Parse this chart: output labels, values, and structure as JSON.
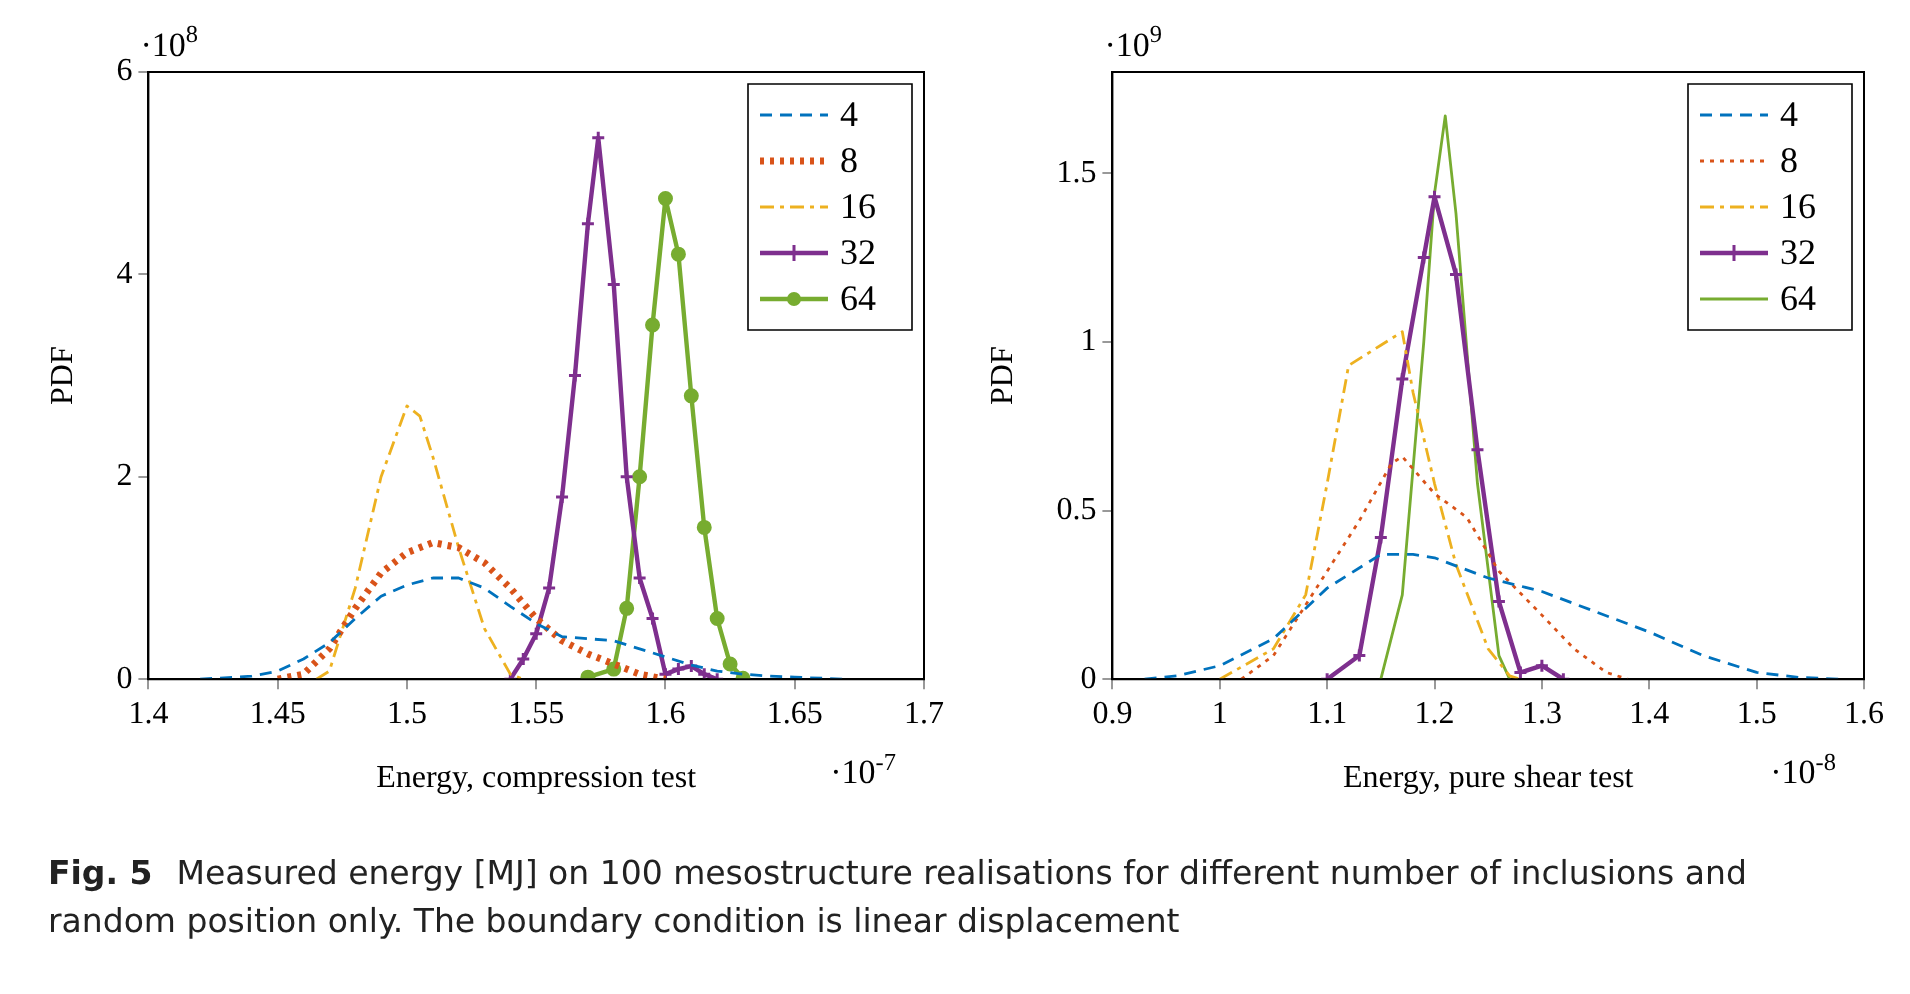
{
  "chart_data": [
    {
      "type": "line",
      "xlabel": "Energy, compression test",
      "ylabel": "PDF",
      "xlim": [
        1.4,
        1.7
      ],
      "xticks": [
        1.4,
        1.45,
        1.5,
        1.55,
        1.6,
        1.65,
        1.7
      ],
      "ylim": [
        0,
        6
      ],
      "yticks": [
        0,
        2,
        4,
        6
      ],
      "legend": "top right",
      "grid": false,
      "annotations": [
        "·10$^{8}$",
        "·10$^{-7}$",
        "Fig. 5",
        "Measured energy [MJ] on 100 mesostructure realisations for different number of inclusions and random position only. The boundary condition is linear displacement"
      ],
      "series": [
        {
          "name": "4",
          "color": "#0072bd",
          "line_style": "dashed",
          "marker": "none",
          "x": [
            1.42,
            1.44,
            1.45,
            1.46,
            1.47,
            1.48,
            1.49,
            1.5,
            1.51,
            1.52,
            1.53,
            1.54,
            1.55,
            1.56,
            1.57,
            1.58,
            1.59,
            1.6,
            1.61,
            1.62,
            1.63,
            1.64,
            1.65,
            1.67
          ],
          "values": [
            0,
            0.03,
            0.08,
            0.2,
            0.36,
            0.6,
            0.82,
            0.93,
            1.0,
            1.0,
            0.9,
            0.72,
            0.55,
            0.42,
            0.4,
            0.38,
            0.3,
            0.22,
            0.14,
            0.08,
            0.05,
            0.03,
            0.02,
            0
          ]
        },
        {
          "name": "8",
          "color": "#d95319",
          "line_style": "dotted",
          "marker": "none",
          "x": [
            1.45,
            1.46,
            1.47,
            1.48,
            1.49,
            1.5,
            1.51,
            1.52,
            1.53,
            1.54,
            1.55,
            1.56,
            1.57,
            1.58,
            1.59,
            1.6
          ],
          "values": [
            0,
            0.05,
            0.3,
            0.7,
            1.05,
            1.25,
            1.35,
            1.3,
            1.15,
            0.9,
            0.6,
            0.38,
            0.25,
            0.15,
            0.05,
            0
          ]
        },
        {
          "name": "16",
          "color": "#edb120",
          "line_style": "dashdot",
          "marker": "none",
          "x": [
            1.465,
            1.47,
            1.48,
            1.49,
            1.5,
            1.505,
            1.51,
            1.52,
            1.53,
            1.54,
            1.545
          ],
          "values": [
            0,
            0.08,
            0.9,
            2.0,
            2.7,
            2.6,
            2.2,
            1.3,
            0.5,
            0.05,
            0
          ]
        },
        {
          "name": "32",
          "color": "#7e2f8e",
          "line_style": "solid",
          "marker": "cross",
          "x": [
            1.54,
            1.545,
            1.55,
            1.555,
            1.56,
            1.565,
            1.57,
            1.574,
            1.58,
            1.585,
            1.59,
            1.595,
            1.6,
            1.605,
            1.61,
            1.615,
            1.62
          ],
          "values": [
            0,
            0.2,
            0.45,
            0.9,
            1.8,
            3.0,
            4.5,
            5.35,
            3.9,
            2.0,
            1.0,
            0.6,
            0.05,
            0.1,
            0.13,
            0.05,
            0
          ]
        },
        {
          "name": "64",
          "color": "#77ac30",
          "line_style": "solid",
          "marker": "circle",
          "x": [
            1.57,
            1.58,
            1.585,
            1.59,
            1.595,
            1.6,
            1.605,
            1.61,
            1.615,
            1.62,
            1.625,
            1.63
          ],
          "values": [
            0.02,
            0.1,
            0.7,
            2.0,
            3.5,
            4.75,
            4.2,
            2.8,
            1.5,
            0.6,
            0.15,
            0.01
          ]
        }
      ]
    },
    {
      "type": "line",
      "xlabel": "Energy, pure shear test",
      "ylabel": "PDF",
      "xlim": [
        0.9,
        1.6
      ],
      "xticks": [
        0.9,
        1,
        1.1,
        1.2,
        1.3,
        1.4,
        1.5,
        1.6
      ],
      "ylim": [
        0,
        1.8
      ],
      "yticks": [
        0,
        0.5,
        1,
        1.5
      ],
      "legend": "top right",
      "grid": false,
      "annotations": [
        "·10$^{9}$",
        "·10$^{-8}$"
      ],
      "series": [
        {
          "name": "4",
          "color": "#0072bd",
          "line_style": "dashed",
          "marker": "none",
          "x": [
            0.93,
            0.96,
            1.0,
            1.05,
            1.1,
            1.15,
            1.18,
            1.2,
            1.25,
            1.3,
            1.35,
            1.4,
            1.45,
            1.5,
            1.54,
            1.58
          ],
          "values": [
            0,
            0.01,
            0.04,
            0.12,
            0.27,
            0.37,
            0.37,
            0.36,
            0.3,
            0.26,
            0.2,
            0.14,
            0.07,
            0.02,
            0.005,
            0
          ]
        },
        {
          "name": "8",
          "color": "#d95319",
          "line_style": "dotted",
          "marker": "none",
          "x": [
            1.02,
            1.05,
            1.1,
            1.13,
            1.16,
            1.17,
            1.2,
            1.23,
            1.26,
            1.3,
            1.33,
            1.36,
            1.38
          ],
          "values": [
            0,
            0.07,
            0.32,
            0.47,
            0.64,
            0.66,
            0.55,
            0.48,
            0.32,
            0.19,
            0.09,
            0.02,
            0
          ]
        },
        {
          "name": "16",
          "color": "#edb120",
          "line_style": "dashdot",
          "marker": "none",
          "x": [
            1.0,
            1.05,
            1.08,
            1.1,
            1.12,
            1.15,
            1.17,
            1.18,
            1.2,
            1.22,
            1.25,
            1.27,
            1.28
          ],
          "values": [
            0,
            0.09,
            0.25,
            0.58,
            0.93,
            0.99,
            1.03,
            0.85,
            0.58,
            0.34,
            0.09,
            0.01,
            0
          ]
        },
        {
          "name": "32",
          "color": "#7e2f8e",
          "line_style": "solid",
          "marker": "cross",
          "x": [
            1.1,
            1.13,
            1.15,
            1.17,
            1.19,
            1.2,
            1.22,
            1.24,
            1.26,
            1.28,
            1.3,
            1.32
          ],
          "values": [
            0,
            0.07,
            0.42,
            0.89,
            1.25,
            1.43,
            1.2,
            0.68,
            0.23,
            0.02,
            0.04,
            0
          ]
        },
        {
          "name": "64",
          "color": "#77ac30",
          "line_style": "solid",
          "marker": "none",
          "x": [
            1.15,
            1.17,
            1.19,
            1.2,
            1.21,
            1.22,
            1.24,
            1.26,
            1.27
          ],
          "values": [
            0,
            0.25,
            1.0,
            1.44,
            1.67,
            1.38,
            0.58,
            0.07,
            0
          ]
        }
      ]
    }
  ]
}
